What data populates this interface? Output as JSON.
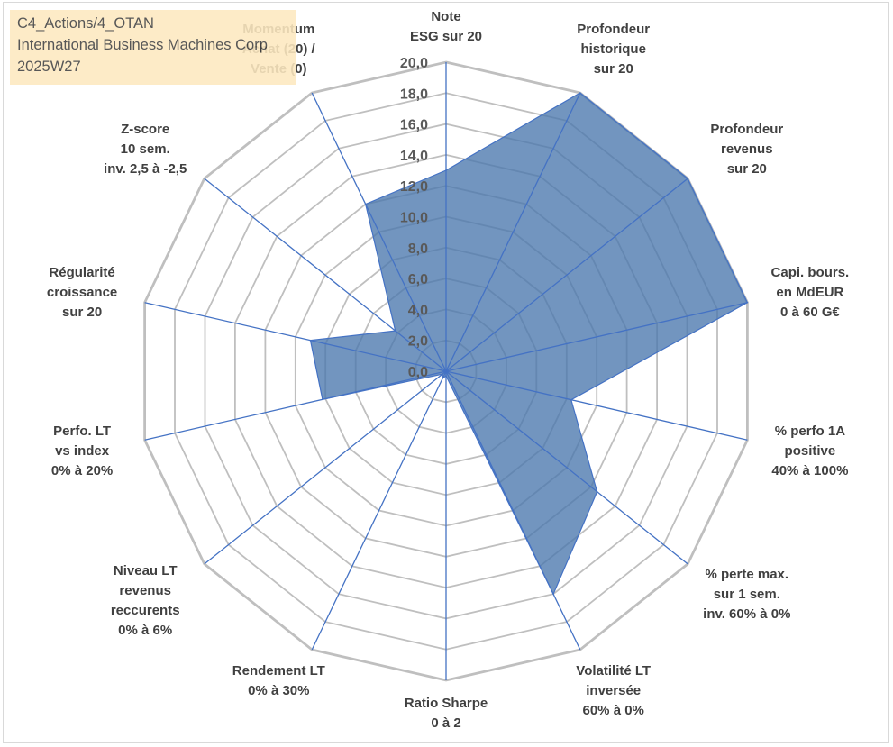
{
  "info_box": {
    "line1": "C4_Actions/4_OTAN",
    "line2": "International Business Machines Corp",
    "line3": "2025W27"
  },
  "chart_data": {
    "type": "radar",
    "r_ticks": [
      "0,0",
      "2,0",
      "4,0",
      "6,0",
      "8,0",
      "10,0",
      "12,0",
      "14,0",
      "16,0",
      "18,0",
      "20,0"
    ],
    "r_range": [
      0,
      20
    ],
    "r_step": 2,
    "grid": true,
    "axes": [
      {
        "label": [
          "Note",
          "ESG sur 20"
        ]
      },
      {
        "label": [
          "Profondeur",
          "historique",
          "sur 20"
        ]
      },
      {
        "label": [
          "Profondeur",
          "revenus",
          "sur 20"
        ]
      },
      {
        "label": [
          "Capi. bours.",
          "en MdEUR",
          "0 à 60 G€"
        ]
      },
      {
        "label": [
          "% perfo 1A",
          "positive",
          "40% à 100%"
        ]
      },
      {
        "label": [
          "% perte max.",
          "sur 1 sem.",
          "inv. 60% à 0%"
        ]
      },
      {
        "label": [
          "Volatilité LT",
          "inversée",
          "60% à 0%"
        ]
      },
      {
        "label": [
          "Ratio Sharpe",
          "0 à 2"
        ]
      },
      {
        "label": [
          "Rendement LT",
          "0% à 30%"
        ]
      },
      {
        "label": [
          "Niveau LT",
          "revenus",
          "reccurents",
          "0% à 6%"
        ]
      },
      {
        "label": [
          "Perfo. LT",
          "vs index",
          "0% à 20%"
        ]
      },
      {
        "label": [
          "Régularité",
          "croissance",
          "sur 20"
        ]
      },
      {
        "label": [
          "Z-score",
          "10 sem.",
          "inv. 2,5 à -2,5"
        ]
      },
      {
        "label": [
          "Momentum",
          "Achat (20) /",
          "Vente (0)"
        ]
      }
    ],
    "series": [
      {
        "values": [
          13.0,
          20.0,
          20.0,
          20.0,
          8.3,
          12.5,
          16.0,
          0.3,
          0.5,
          0.3,
          8.2,
          9.0,
          4.2,
          12.0
        ]
      }
    ],
    "colors": {
      "fill": "#4a77ad",
      "line": "#4472c4",
      "grid": "#bfbfbf",
      "spoke": "#4472c4"
    }
  }
}
